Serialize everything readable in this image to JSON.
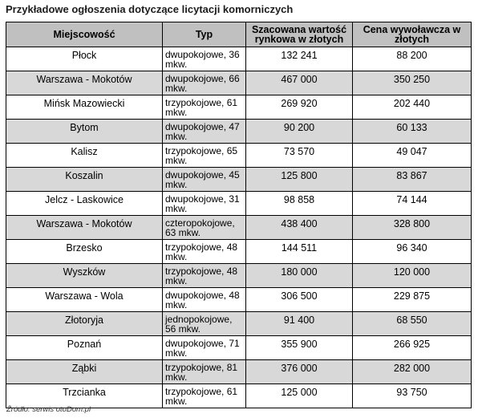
{
  "title": "Przykładowe ogłoszenia dotyczące licytacji komorniczych",
  "table": {
    "headers": [
      "Miejscowość",
      "Typ",
      "Szacowana wartość rynkowa w złotych",
      "Cena wywoławcza w złotych"
    ],
    "header_colors": {
      "header_bg": "#c0c0c0",
      "shaded_row_bg": "#d8d8d8"
    },
    "rows": [
      {
        "city": "Płock",
        "type": "dwupokojowe, 36 mkw.",
        "value": "132 241",
        "price": "88 200"
      },
      {
        "city": "Warszawa - Mokotów",
        "type": "dwupokojowe, 66 mkw.",
        "value": "467 000",
        "price": "350 250"
      },
      {
        "city": "Mińsk Mazowiecki",
        "type": "trzypokojowe, 61 mkw.",
        "value": "269 920",
        "price": "202 440"
      },
      {
        "city": "Bytom",
        "type": "dwupokojowe, 47 mkw.",
        "value": "90 200",
        "price": "60 133"
      },
      {
        "city": "Kalisz",
        "type": "trzypokojowe, 65 mkw.",
        "value": "73 570",
        "price": "49 047"
      },
      {
        "city": "Koszalin",
        "type": "dwupokojowe, 45 mkw.",
        "value": "125 800",
        "price": "83 867"
      },
      {
        "city": "Jelcz - Laskowice",
        "type": "dwupokojowe, 31 mkw.",
        "value": "98 858",
        "price": "74 144"
      },
      {
        "city": "Warszawa - Mokotów",
        "type": "czteropokojowe, 63 mkw.",
        "value": "438 400",
        "price": "328 800"
      },
      {
        "city": "Brzesko",
        "type": "trzypokojowe, 48 mkw.",
        "value": "144 511",
        "price": "96 340"
      },
      {
        "city": "Wyszków",
        "type": "trzypokojowe, 48 mkw.",
        "value": "180 000",
        "price": "120 000"
      },
      {
        "city": "Warszawa - Wola",
        "type": "dwupokojowe, 48 mkw.",
        "value": "306 500",
        "price": "229 875"
      },
      {
        "city": "Złotoryja",
        "type": "jednopokojowe, 56 mkw.",
        "value": "91 400",
        "price": "68 550"
      },
      {
        "city": "Poznań",
        "type": "dwupokojowe, 71 mkw.",
        "value": "355 900",
        "price": "266 925"
      },
      {
        "city": "Ząbki",
        "type": "trzypokojowe, 81 mkw.",
        "value": "376 000",
        "price": "282 000"
      },
      {
        "city": "Trzcianka",
        "type": "trzypokojowe, 61 mkw.",
        "value": "125 000",
        "price": "93 750"
      }
    ]
  },
  "source": "Źródło: serwis otoDom.pl"
}
